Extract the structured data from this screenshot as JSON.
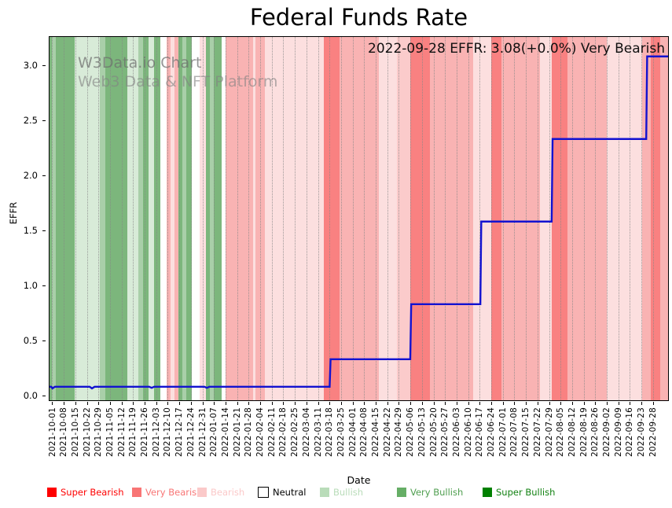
{
  "header": {
    "title": "Federal Funds Rate"
  },
  "watermark": {
    "line1": "W3Data.io Chart",
    "line2": "Web3 Data & NFT Platform"
  },
  "annotation": "2022-09-28 EFFR: 3.08(+0.0%) Very Bearish",
  "axis": {
    "x_label": "Date",
    "y_label": "EFFR"
  },
  "legend": {
    "items": [
      {
        "label": "Super Bearish",
        "swatch": "#fe0000",
        "text_color": "#fe0000",
        "x": 60,
        "border": "none"
      },
      {
        "label": "Very Bearish",
        "swatch": "#f87575",
        "text_color": "#f87575",
        "x": 168,
        "border": "none"
      },
      {
        "label": "Bearish",
        "swatch": "#fbc9c9",
        "text_color": "#fbc9c9",
        "x": 251,
        "border": "none"
      },
      {
        "label": "Neutral",
        "swatch": "#ffffff",
        "text_color": "#000000",
        "x": 328,
        "border": "#000000"
      },
      {
        "label": "Bullish",
        "swatch": "#b9dcb9",
        "text_color": "#b9dcb9",
        "x": 407,
        "border": "none"
      },
      {
        "label": "Very Bullish",
        "swatch": "#66ae66",
        "text_color": "#4f9e4f",
        "x": 505,
        "border": "none"
      },
      {
        "label": "Super Bullish",
        "swatch": "#008000",
        "text_color": "#128112",
        "x": 614,
        "border": "none"
      }
    ]
  },
  "chart_data": {
    "type": "line",
    "title": "Federal Funds Rate",
    "xlabel": "Date",
    "ylabel": "EFFR",
    "grid": true,
    "ylim": [
      -0.05,
      3.264
    ],
    "y_ticks": [
      {
        "label": "0.0",
        "value": 0.0
      },
      {
        "label": "0.5",
        "value": 0.5
      },
      {
        "label": "1.0",
        "value": 1.0
      },
      {
        "label": "1.5",
        "value": 1.5
      },
      {
        "label": "2.0",
        "value": 2.0
      },
      {
        "label": "2.5",
        "value": 2.5
      },
      {
        "label": "3.0",
        "value": 3.0
      }
    ],
    "x_tick_labels": [
      "2021-10-01",
      "2021-10-08",
      "2021-10-15",
      "2021-10-22",
      "2021-10-29",
      "2021-11-05",
      "2021-11-12",
      "2021-11-19",
      "2021-11-26",
      "2021-12-03",
      "2021-12-10",
      "2021-12-17",
      "2021-12-24",
      "2021-12-31",
      "2022-01-07",
      "2022-01-14",
      "2022-01-21",
      "2022-01-28",
      "2022-02-04",
      "2022-02-11",
      "2022-02-18",
      "2022-02-25",
      "2022-03-04",
      "2022-03-11",
      "2022-03-18",
      "2022-03-25",
      "2022-04-01",
      "2022-04-08",
      "2022-04-15",
      "2022-04-22",
      "2022-04-29",
      "2022-05-06",
      "2022-05-13",
      "2022-05-20",
      "2022-05-27",
      "2022-06-03",
      "2022-06-10",
      "2022-06-17",
      "2022-06-24",
      "2022-07-01",
      "2022-07-08",
      "2022-07-15",
      "2022-07-22",
      "2022-07-29",
      "2022-08-05",
      "2022-08-12",
      "2022-08-19",
      "2022-08-26",
      "2022-09-02",
      "2022-09-09",
      "2022-09-16",
      "2022-09-23",
      "2022-09-28"
    ],
    "x_first_tick_pct": 0.57,
    "x_tick_step_pct": 1.863,
    "line_color": "#1212d0",
    "series": [
      {
        "name": "EFFR",
        "points_pct_value": [
          [
            0,
            0.08
          ],
          [
            0.4,
            0.08
          ],
          [
            0.6,
            0.065
          ],
          [
            1.0,
            0.08
          ],
          [
            6.6,
            0.08
          ],
          [
            6.97,
            0.065
          ],
          [
            7.4,
            0.08
          ],
          [
            16.2,
            0.08
          ],
          [
            16.6,
            0.07
          ],
          [
            17.0,
            0.08
          ],
          [
            25.1,
            0.08
          ],
          [
            25.5,
            0.07
          ],
          [
            25.9,
            0.08
          ],
          [
            45.3,
            0.08
          ],
          [
            45.45,
            0.33
          ],
          [
            58.3,
            0.33
          ],
          [
            58.45,
            0.83
          ],
          [
            69.6,
            0.83
          ],
          [
            69.75,
            1.58
          ],
          [
            81.1,
            1.58
          ],
          [
            81.25,
            2.33
          ],
          [
            96.35,
            2.33
          ],
          [
            96.5,
            3.08
          ],
          [
            100,
            3.08
          ]
        ]
      }
    ],
    "key_steps": [
      {
        "date": "2021-10-01",
        "effr": 0.08
      },
      {
        "date": "2022-03-17",
        "effr": 0.33
      },
      {
        "date": "2022-05-05",
        "effr": 0.83
      },
      {
        "date": "2022-06-16",
        "effr": 1.58
      },
      {
        "date": "2022-07-28",
        "effr": 2.33
      },
      {
        "date": "2022-09-22",
        "effr": 3.08
      },
      {
        "date": "2022-09-28",
        "effr": 3.08
      }
    ],
    "sentiment_colors": {
      "super_bearish": "#f98181",
      "very_bearish": "#f9b3b3",
      "bearish_mid": "#fbcbcb",
      "bearish": "#fcdfdf",
      "neutral": "#ffffff",
      "bullish": "#d8ebd8",
      "bullish_mid": "#a9cfa9",
      "very_bullish": "#7cb67c"
    },
    "bands": [
      [
        0.0,
        0.51,
        "very_bullish"
      ],
      [
        0.51,
        1.14,
        "bullish_mid"
      ],
      [
        1.14,
        4.18,
        "very_bullish"
      ],
      [
        4.18,
        8.24,
        "bullish"
      ],
      [
        8.24,
        9.13,
        "bullish_mid"
      ],
      [
        9.13,
        12.67,
        "very_bullish"
      ],
      [
        12.67,
        14.45,
        "bullish"
      ],
      [
        14.45,
        15.21,
        "bullish_mid"
      ],
      [
        15.21,
        16.1,
        "very_bullish"
      ],
      [
        16.1,
        16.98,
        "bullish"
      ],
      [
        16.98,
        18.0,
        "very_bullish"
      ],
      [
        18.0,
        19.01,
        "neutral"
      ],
      [
        19.01,
        19.64,
        "very_bearish"
      ],
      [
        19.64,
        20.28,
        "bearish"
      ],
      [
        20.28,
        20.91,
        "very_bearish"
      ],
      [
        20.91,
        21.55,
        "very_bullish"
      ],
      [
        21.55,
        22.18,
        "bullish_mid"
      ],
      [
        22.18,
        23.07,
        "very_bullish"
      ],
      [
        23.07,
        24.33,
        "neutral"
      ],
      [
        24.33,
        25.35,
        "bearish"
      ],
      [
        25.35,
        25.98,
        "very_bullish"
      ],
      [
        25.98,
        26.62,
        "bullish_mid"
      ],
      [
        26.62,
        27.88,
        "very_bullish"
      ],
      [
        27.88,
        28.52,
        "neutral"
      ],
      [
        28.52,
        32.95,
        "very_bearish"
      ],
      [
        32.95,
        33.33,
        "bearish"
      ],
      [
        33.33,
        34.85,
        "very_bearish"
      ],
      [
        34.85,
        44.36,
        "bearish"
      ],
      [
        44.36,
        46.89,
        "super_bearish"
      ],
      [
        46.89,
        53.23,
        "very_bearish"
      ],
      [
        53.23,
        56.15,
        "bearish"
      ],
      [
        56.15,
        58.3,
        "bearish_mid"
      ],
      [
        58.3,
        61.47,
        "super_bearish"
      ],
      [
        61.47,
        68.44,
        "very_bearish"
      ],
      [
        68.44,
        71.36,
        "bearish"
      ],
      [
        71.36,
        73.0,
        "super_bearish"
      ],
      [
        73.0,
        79.21,
        "very_bearish"
      ],
      [
        79.21,
        81.12,
        "bearish"
      ],
      [
        81.12,
        83.65,
        "super_bearish"
      ],
      [
        83.65,
        89.99,
        "very_bearish"
      ],
      [
        89.99,
        95.69,
        "bearish"
      ],
      [
        95.69,
        97.08,
        "very_bearish"
      ],
      [
        97.08,
        98.61,
        "super_bearish"
      ],
      [
        98.61,
        100.0,
        "very_bearish"
      ]
    ]
  }
}
